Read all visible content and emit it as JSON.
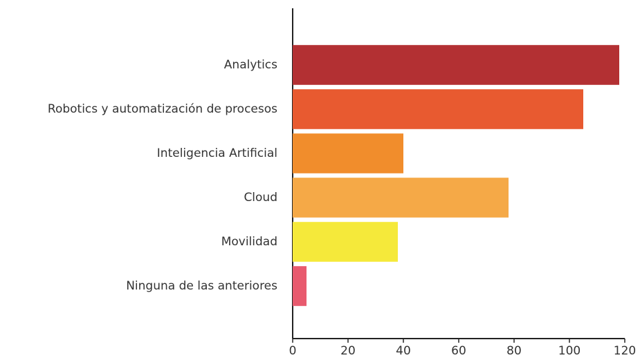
{
  "chart_data": {
    "type": "barh",
    "categories": [
      "Analytics",
      "Robotics y automatización de procesos",
      "Inteligencia Artificial",
      "Cloud",
      "Movilidad",
      "Ninguna de las anteriores"
    ],
    "values": [
      118,
      105,
      40,
      78,
      38,
      5
    ],
    "colors": [
      "#b33033",
      "#e85a30",
      "#f18d2c",
      "#f5a947",
      "#f5e93a",
      "#e85a6e"
    ],
    "xlim": [
      0,
      120
    ],
    "xticks": [
      0,
      20,
      40,
      60,
      80,
      100,
      120
    ],
    "grid": false
  }
}
